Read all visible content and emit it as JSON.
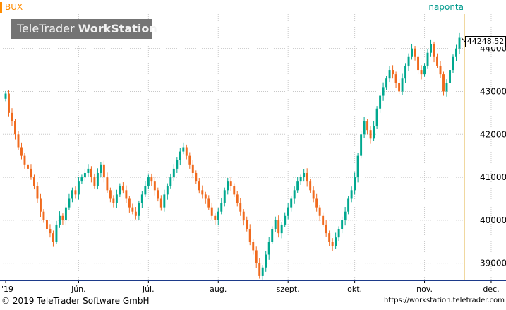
{
  "header": {
    "ticker": "BUX",
    "interval": "naponta",
    "watermark_light": "TeleTrader ",
    "watermark_bold": "WorkStation"
  },
  "price_label": "44248,52",
  "footer": {
    "copyright": "© 2019 TeleTrader Software GmbH",
    "url": "https://workstation.teletrader.com"
  },
  "colors": {
    "up": "#00a88f",
    "down": "#f06a1e",
    "ticker": "#ff8c00",
    "interval": "#009a8c",
    "gridline": "#c8c8c8",
    "right_axis_line": "#e0b040",
    "bottom_axis_line": "#1c3a8a",
    "watermark_bg": "#747474"
  },
  "chart_data": {
    "type": "candlestick",
    "title": "BUX",
    "interval": "naponta",
    "ylim": [
      38600,
      44800
    ],
    "y_ticks": [
      39000,
      40000,
      41000,
      42000,
      43000,
      44000
    ],
    "y_tick_labels": [
      "39000",
      "40000",
      "41000",
      "42000",
      "43000",
      "44000"
    ],
    "x_tick_labels": [
      "'19",
      "jún.",
      "júl.",
      "aug.",
      "szept.",
      "okt.",
      "nov.",
      "dec."
    ],
    "x_tick_positions": [
      0,
      23,
      45,
      67,
      89,
      110,
      132,
      153
    ],
    "grid": true,
    "last_value": 44248.52,
    "closes": [
      42950,
      42500,
      42300,
      42000,
      41700,
      41500,
      41300,
      41200,
      41000,
      40800,
      40500,
      40200,
      40000,
      39800,
      39700,
      39500,
      39900,
      40100,
      40000,
      40300,
      40500,
      40700,
      40600,
      40900,
      41000,
      41100,
      41200,
      41000,
      40800,
      41100,
      41300,
      41000,
      40700,
      40500,
      40400,
      40600,
      40800,
      40700,
      40500,
      40300,
      40200,
      40100,
      40400,
      40600,
      40800,
      41000,
      40900,
      40700,
      40500,
      40300,
      40600,
      40800,
      41000,
      41200,
      41400,
      41600,
      41700,
      41500,
      41300,
      41100,
      40900,
      40700,
      40600,
      40500,
      40300,
      40100,
      40000,
      40200,
      40400,
      40700,
      40900,
      40800,
      40600,
      40400,
      40200,
      40000,
      39800,
      39500,
      39300,
      39000,
      38700,
      38900,
      39200,
      39500,
      39800,
      40000,
      39700,
      39900,
      40100,
      40300,
      40500,
      40700,
      40900,
      41000,
      41100,
      40900,
      40700,
      40500,
      40300,
      40100,
      39900,
      39700,
      39500,
      39400,
      39600,
      39800,
      40000,
      40200,
      40500,
      40700,
      41000,
      41500,
      42000,
      42300,
      42100,
      41900,
      42200,
      42600,
      42900,
      43100,
      43300,
      43500,
      43400,
      43200,
      43000,
      43300,
      43600,
      43800,
      44000,
      43800,
      43500,
      43400,
      43600,
      43900,
      44100,
      43800,
      43600,
      43400,
      43000,
      43200,
      43500,
      43800,
      44000,
      44248.52
    ],
    "dates_range": [
      "2019-05",
      "2019-12"
    ]
  }
}
